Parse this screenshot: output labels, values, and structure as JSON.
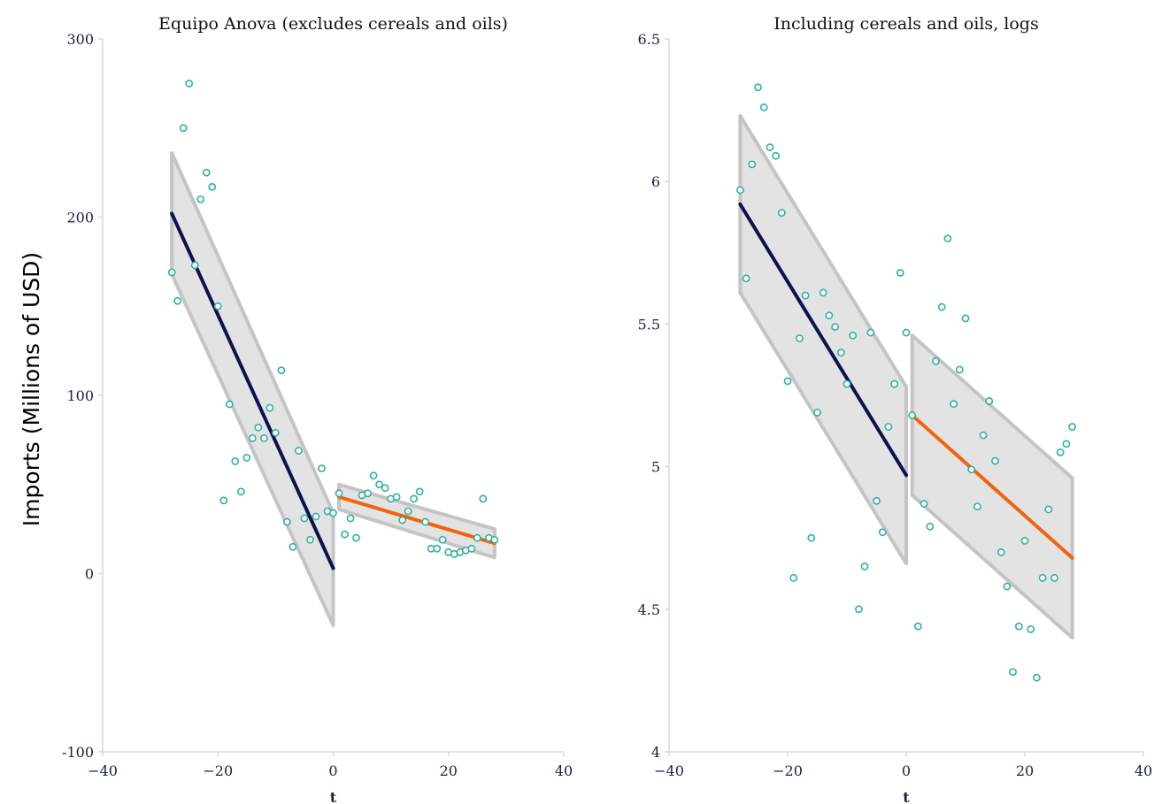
{
  "figure": {
    "ylabel": "Imports (Millions of USD)"
  },
  "colors": {
    "pre_line": "#0d1150",
    "post_line": "#f2620f",
    "points": "#2fb29c",
    "band_fill": "#e3e3e3",
    "band_edge": "#c4c4c4",
    "axis": "#d8d8d8"
  },
  "chart_data": [
    {
      "type": "scatter",
      "title": "Equipo Anova (excludes cereals and oils)",
      "xlabel": "t",
      "ylabel": "",
      "xlim": [
        -40,
        40
      ],
      "ylim": [
        -100,
        300
      ],
      "xticks": [
        -40,
        -20,
        0,
        20,
        40
      ],
      "yticks": [
        -100,
        0,
        100,
        200,
        300
      ],
      "grid": false,
      "points": [
        [
          -28,
          169
        ],
        [
          -27,
          153
        ],
        [
          -26,
          250
        ],
        [
          -25,
          275
        ],
        [
          -24,
          173
        ],
        [
          -23,
          210
        ],
        [
          -22,
          225
        ],
        [
          -21,
          217
        ],
        [
          -20,
          150
        ],
        [
          -19,
          41
        ],
        [
          -18,
          95
        ],
        [
          -17,
          63
        ],
        [
          -16,
          46
        ],
        [
          -15,
          65
        ],
        [
          -14,
          76
        ],
        [
          -13,
          82
        ],
        [
          -12,
          76
        ],
        [
          -11,
          93
        ],
        [
          -10,
          79
        ],
        [
          -9,
          114
        ],
        [
          -8,
          29
        ],
        [
          -7,
          15
        ],
        [
          -6,
          69
        ],
        [
          -5,
          31
        ],
        [
          -4,
          19
        ],
        [
          -3,
          32
        ],
        [
          -2,
          59
        ],
        [
          -1,
          35
        ],
        [
          0,
          34
        ],
        [
          1,
          45
        ],
        [
          2,
          22
        ],
        [
          3,
          31
        ],
        [
          4,
          20
        ],
        [
          5,
          44
        ],
        [
          6,
          45
        ],
        [
          7,
          55
        ],
        [
          8,
          50
        ],
        [
          9,
          48
        ],
        [
          10,
          42
        ],
        [
          11,
          43
        ],
        [
          12,
          30
        ],
        [
          13,
          35
        ],
        [
          14,
          42
        ],
        [
          15,
          46
        ],
        [
          16,
          29
        ],
        [
          17,
          14
        ],
        [
          18,
          14
        ],
        [
          19,
          19
        ],
        [
          20,
          12
        ],
        [
          21,
          11
        ],
        [
          22,
          12
        ],
        [
          23,
          13
        ],
        [
          24,
          14
        ],
        [
          25,
          20
        ],
        [
          26,
          42
        ],
        [
          27,
          20
        ],
        [
          28,
          19
        ]
      ],
      "fits": [
        {
          "segment": "pre",
          "x": [
            -28,
            0
          ],
          "y": [
            202,
            3
          ],
          "ci_lower": [
            168,
            -29
          ],
          "ci_upper": [
            236,
            34
          ]
        },
        {
          "segment": "post",
          "x": [
            1,
            28
          ],
          "y": [
            43,
            17
          ],
          "ci_lower": [
            36,
            9
          ],
          "ci_upper": [
            50,
            25
          ]
        }
      ]
    },
    {
      "type": "scatter",
      "title": "Including cereals and oils, logs",
      "xlabel": "t",
      "ylabel": "",
      "xlim": [
        -40,
        40
      ],
      "ylim": [
        4,
        6.5
      ],
      "xticks": [
        -40,
        -20,
        0,
        20,
        40
      ],
      "yticks": [
        4,
        4.5,
        5,
        5.5,
        6,
        6.5
      ],
      "grid": false,
      "points": [
        [
          -28,
          5.97
        ],
        [
          -27,
          5.66
        ],
        [
          -26,
          6.06
        ],
        [
          -25,
          6.33
        ],
        [
          -24,
          6.26
        ],
        [
          -23,
          6.12
        ],
        [
          -22,
          6.09
        ],
        [
          -21,
          5.89
        ],
        [
          -20,
          5.3
        ],
        [
          -19,
          4.61
        ],
        [
          -18,
          5.45
        ],
        [
          -17,
          5.6
        ],
        [
          -16,
          4.75
        ],
        [
          -15,
          5.19
        ],
        [
          -14,
          5.61
        ],
        [
          -13,
          5.53
        ],
        [
          -12,
          5.49
        ],
        [
          -11,
          5.4
        ],
        [
          -10,
          5.29
        ],
        [
          -9,
          5.46
        ],
        [
          -8,
          4.5
        ],
        [
          -7,
          4.65
        ],
        [
          -6,
          5.47
        ],
        [
          -5,
          4.88
        ],
        [
          -4,
          4.77
        ],
        [
          -3,
          5.14
        ],
        [
          -2,
          5.29
        ],
        [
          -1,
          5.68
        ],
        [
          0,
          5.47
        ],
        [
          1,
          5.18
        ],
        [
          2,
          4.44
        ],
        [
          3,
          4.87
        ],
        [
          4,
          4.79
        ],
        [
          5,
          5.37
        ],
        [
          6,
          5.56
        ],
        [
          7,
          5.8
        ],
        [
          8,
          5.22
        ],
        [
          9,
          5.34
        ],
        [
          10,
          5.52
        ],
        [
          11,
          4.99
        ],
        [
          12,
          4.86
        ],
        [
          13,
          5.11
        ],
        [
          14,
          5.23
        ],
        [
          15,
          5.02
        ],
        [
          16,
          4.7
        ],
        [
          17,
          4.58
        ],
        [
          18,
          4.28
        ],
        [
          19,
          4.44
        ],
        [
          20,
          4.74
        ],
        [
          21,
          4.43
        ],
        [
          22,
          4.26
        ],
        [
          23,
          4.61
        ],
        [
          24,
          4.85
        ],
        [
          25,
          4.61
        ],
        [
          26,
          5.05
        ],
        [
          27,
          5.08
        ],
        [
          28,
          5.14
        ]
      ],
      "fits": [
        {
          "segment": "pre",
          "x": [
            -28,
            0
          ],
          "y": [
            5.92,
            4.97
          ],
          "ci_lower": [
            5.61,
            4.66
          ],
          "ci_upper": [
            6.23,
            5.28
          ]
        },
        {
          "segment": "post",
          "x": [
            1,
            28
          ],
          "y": [
            5.18,
            4.68
          ],
          "ci_lower": [
            4.9,
            4.4
          ],
          "ci_upper": [
            5.46,
            4.96
          ]
        }
      ]
    }
  ]
}
